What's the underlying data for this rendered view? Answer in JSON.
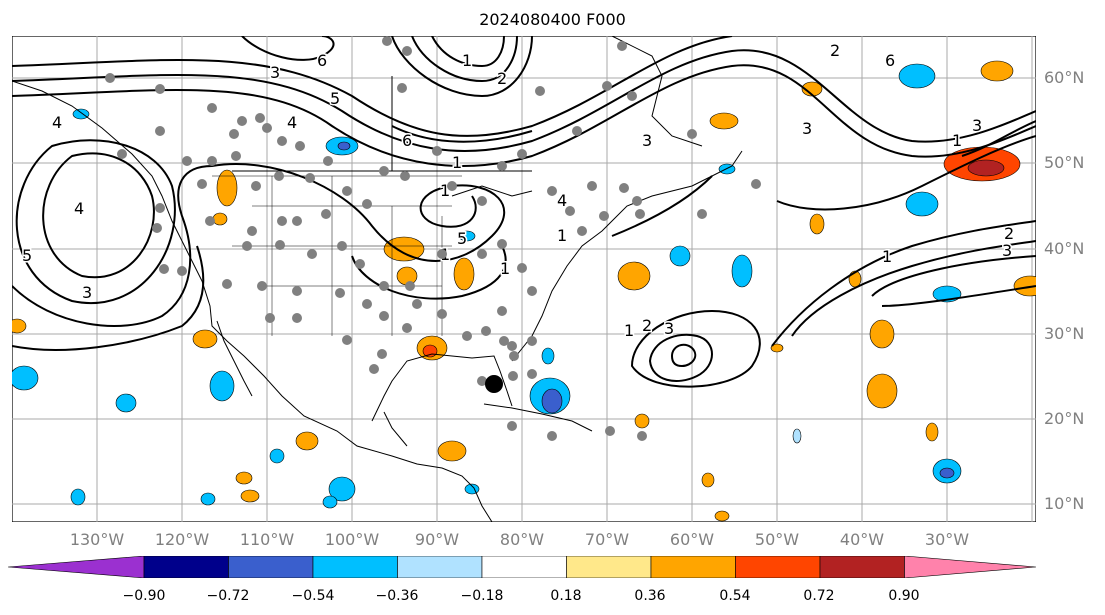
{
  "title": "2024080400 F000",
  "lat_labels": [
    "60°N",
    "50°N",
    "40°N",
    "30°N",
    "20°N",
    "10°N"
  ],
  "lon_labels": [
    "130°W",
    "120°W",
    "110°W",
    "100°W",
    "90°W",
    "80°W",
    "70°W",
    "60°W",
    "50°W",
    "40°W",
    "30°W"
  ],
  "colorbar": {
    "tick_labels": [
      "−0.90",
      "−0.72",
      "−0.54",
      "−0.36",
      "−0.18",
      "0.18",
      "0.36",
      "0.54",
      "0.72",
      "0.90"
    ],
    "colors": [
      "#9b30d0",
      "#00008b",
      "#3a5fcd",
      "#00bfff",
      "#b0e2ff",
      "#ffffff",
      "#ffe88a",
      "#ffa500",
      "#ff4500",
      "#b22222",
      "#ff82ab"
    ]
  },
  "contour_labels": [
    "6",
    "1",
    "2",
    "3",
    "4",
    "5",
    "6",
    "1",
    "2",
    "3",
    "6",
    "1",
    "3",
    "4",
    "5",
    "4",
    "3",
    "1",
    "1",
    "1",
    "1",
    "2",
    "3",
    "1",
    "3",
    "5",
    "1",
    "2",
    "3",
    "4"
  ],
  "storm_marker": "black-dot"
}
